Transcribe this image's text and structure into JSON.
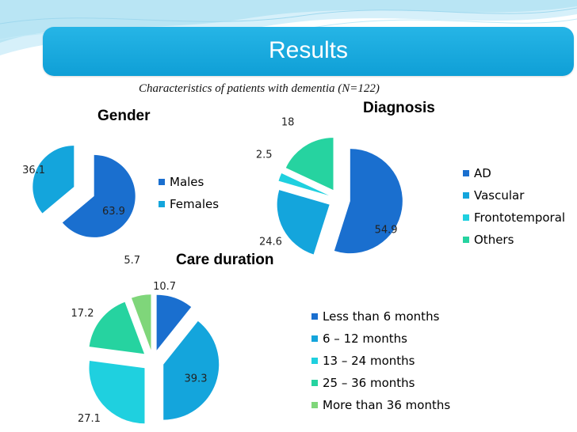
{
  "slide": {
    "title": "Results",
    "subtitle": "Characteristics of patients with dementia (N=122)"
  },
  "colors": {
    "background_wave": "#a8def0",
    "title_bar": "#1aa8dd",
    "label_text": "#222222"
  },
  "chart_data": [
    {
      "type": "pie",
      "title": "Gender",
      "categories": [
        "Males",
        "Females"
      ],
      "values": [
        63.9,
        36.1
      ],
      "colors": [
        "#1a6fcf",
        "#14a5dc"
      ],
      "legend_position": "right",
      "exploded": true
    },
    {
      "type": "pie",
      "title": "Diagnosis",
      "categories": [
        "AD",
        "Vascular",
        "Frontotemporal",
        "Others"
      ],
      "values": [
        54.9,
        24.6,
        2.5,
        18
      ],
      "colors": [
        "#1a6fcf",
        "#14a5dc",
        "#1fd0df",
        "#26d3a0"
      ],
      "legend_position": "right",
      "exploded": true
    },
    {
      "type": "pie",
      "title": "Care duration",
      "categories": [
        "Less than 6 months",
        "6 – 12 months",
        "13 – 24 months",
        "25 – 36 months",
        "More than 36 months"
      ],
      "values": [
        10.7,
        39.3,
        27.1,
        17.2,
        5.7
      ],
      "colors": [
        "#1a6fcf",
        "#14a5dc",
        "#1fd0df",
        "#26d3a0",
        "#7fd67a"
      ],
      "legend_position": "right",
      "exploded": true
    }
  ]
}
